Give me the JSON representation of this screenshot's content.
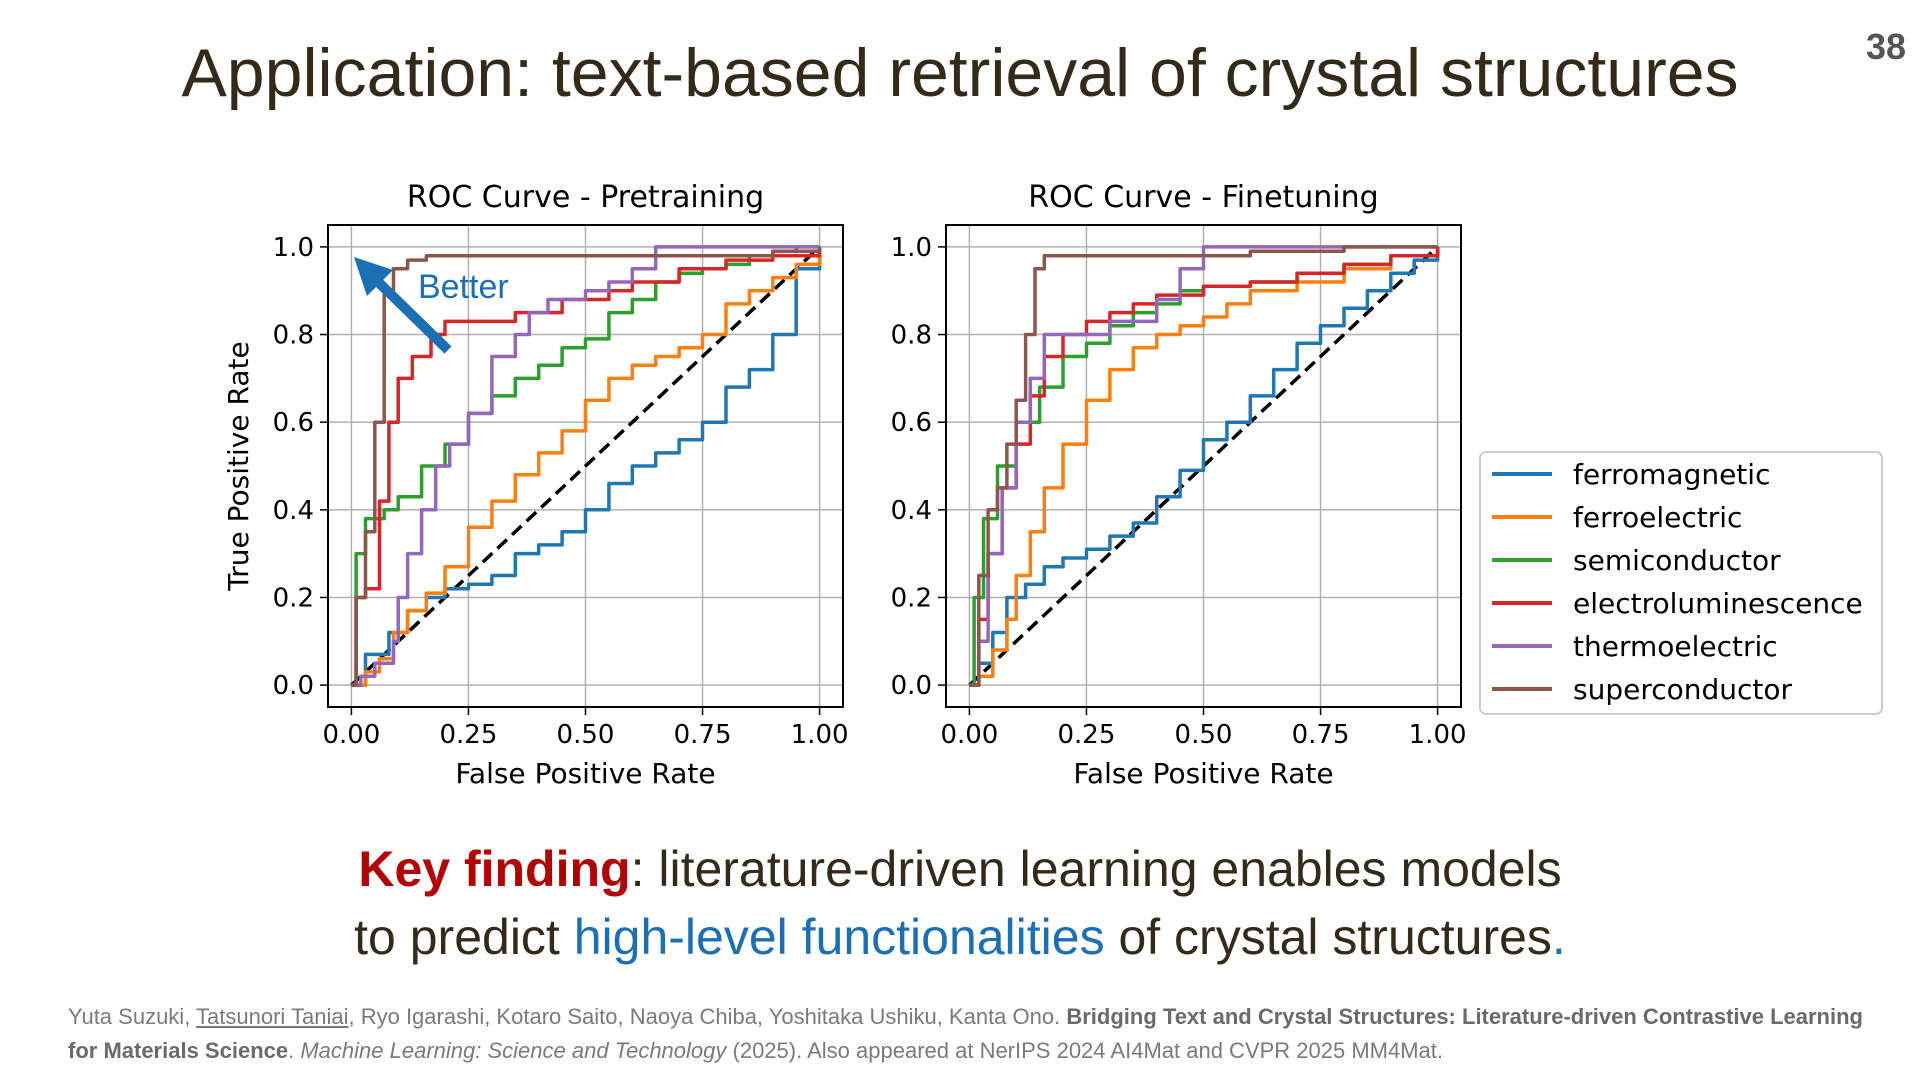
{
  "slide": {
    "title": "Application: text-based retrieval of crystal structures",
    "page_number": "38",
    "annotation": "Better",
    "finding_line1_bold": "Key finding",
    "finding_line1_rest": ": literature-driven learning enables models",
    "finding_line2_start": "to predict ",
    "finding_line2_blue": "high-level functionalities",
    "finding_line2_end": " of crystal structures",
    "finding_line2_dot": "."
  },
  "reference": {
    "author1": "Yuta Suzuki, ",
    "author2": "Tatsunori Taniai",
    "author_rest": ", Ryo Igarashi, Kotaro Saito, Naoya Chiba, Yoshitaka Ushiku, Kanta Ono. ",
    "paper_title": "Bridging Text and Crystal Structures: Literature-driven Contrastive Learning for Materials Science",
    "journal_sep": ". ",
    "journal": "Machine Learning: Science and Technology",
    "tail": " (2025). Also appeared at NerIPS 2024 AI4Mat and CVPR 2025 MM4Mat."
  },
  "colors": {
    "ferromagnetic": "#1f77b4",
    "ferroelectric": "#ff7f0e",
    "semiconductor": "#2ca02c",
    "electroluminescence": "#d62728",
    "thermoelectric": "#9467bd",
    "superconductor": "#8c564b",
    "title": "#332a19",
    "key_red": "#b30000",
    "key_blue": "#1a6fb5"
  },
  "chart_data": [
    {
      "type": "line",
      "title": "ROC Curve - Pretraining",
      "xlabel": "False Positive Rate",
      "ylabel": "True Positive Rate",
      "xlim": [
        -0.05,
        1.05
      ],
      "ylim": [
        -0.05,
        1.05
      ],
      "xticks": [
        "0.00",
        "0.25",
        "0.50",
        "0.75",
        "1.00"
      ],
      "yticks": [
        "0.0",
        "0.2",
        "0.4",
        "0.6",
        "0.8",
        "1.0"
      ],
      "grid": true,
      "diagonal": true,
      "series": [
        {
          "name": "ferromagnetic",
          "x": [
            0,
            0.03,
            0.08,
            0.12,
            0.16,
            0.2,
            0.25,
            0.3,
            0.35,
            0.4,
            0.45,
            0.5,
            0.55,
            0.6,
            0.65,
            0.7,
            0.75,
            0.8,
            0.85,
            0.9,
            0.95,
            1.0
          ],
          "y": [
            0,
            0.07,
            0.12,
            0.17,
            0.2,
            0.22,
            0.23,
            0.25,
            0.3,
            0.32,
            0.35,
            0.4,
            0.46,
            0.5,
            0.53,
            0.56,
            0.6,
            0.68,
            0.72,
            0.8,
            0.95,
            1.0
          ]
        },
        {
          "name": "ferroelectric",
          "x": [
            0,
            0.03,
            0.06,
            0.09,
            0.12,
            0.16,
            0.2,
            0.25,
            0.3,
            0.35,
            0.4,
            0.45,
            0.5,
            0.55,
            0.6,
            0.65,
            0.7,
            0.75,
            0.8,
            0.85,
            0.9,
            0.95,
            1.0
          ],
          "y": [
            0,
            0.03,
            0.06,
            0.12,
            0.17,
            0.21,
            0.27,
            0.36,
            0.42,
            0.48,
            0.53,
            0.58,
            0.65,
            0.7,
            0.73,
            0.75,
            0.77,
            0.8,
            0.87,
            0.9,
            0.93,
            0.96,
            1.0
          ]
        },
        {
          "name": "semiconductor",
          "x": [
            0,
            0.01,
            0.03,
            0.07,
            0.1,
            0.15,
            0.2,
            0.25,
            0.3,
            0.35,
            0.4,
            0.45,
            0.5,
            0.55,
            0.6,
            0.65,
            0.7,
            0.75,
            0.8,
            0.85,
            0.9,
            0.95,
            1.0
          ],
          "y": [
            0,
            0.3,
            0.38,
            0.4,
            0.43,
            0.5,
            0.55,
            0.62,
            0.66,
            0.7,
            0.73,
            0.77,
            0.79,
            0.85,
            0.88,
            0.92,
            0.94,
            0.95,
            0.96,
            0.98,
            0.99,
            1.0,
            1.0
          ]
        },
        {
          "name": "electroluminescence",
          "x": [
            0,
            0.01,
            0.03,
            0.06,
            0.08,
            0.1,
            0.13,
            0.17,
            0.2,
            0.25,
            0.3,
            0.35,
            0.4,
            0.45,
            0.5,
            0.55,
            0.6,
            0.7,
            0.8,
            0.9,
            1.0
          ],
          "y": [
            0,
            0.2,
            0.22,
            0.42,
            0.6,
            0.7,
            0.75,
            0.8,
            0.83,
            0.83,
            0.83,
            0.85,
            0.85,
            0.88,
            0.88,
            0.9,
            0.92,
            0.95,
            0.97,
            0.98,
            1.0
          ]
        },
        {
          "name": "thermoelectric",
          "x": [
            0,
            0.02,
            0.05,
            0.09,
            0.1,
            0.12,
            0.15,
            0.18,
            0.21,
            0.25,
            0.3,
            0.35,
            0.38,
            0.42,
            0.5,
            0.55,
            0.6,
            0.65,
            0.7,
            0.8,
            0.9,
            1.0
          ],
          "y": [
            0,
            0.02,
            0.05,
            0.1,
            0.2,
            0.3,
            0.4,
            0.5,
            0.55,
            0.62,
            0.75,
            0.8,
            0.85,
            0.88,
            0.9,
            0.92,
            0.95,
            1.0,
            1.0,
            1.0,
            1.0,
            1.0
          ]
        },
        {
          "name": "superconductor",
          "x": [
            0,
            0.01,
            0.03,
            0.05,
            0.07,
            0.09,
            0.12,
            0.16,
            0.2,
            0.4,
            0.6,
            0.8,
            0.9,
            1.0
          ],
          "y": [
            0,
            0.2,
            0.35,
            0.6,
            0.9,
            0.95,
            0.97,
            0.98,
            0.98,
            0.98,
            0.98,
            0.98,
            0.99,
            1.0
          ]
        }
      ]
    },
    {
      "type": "line",
      "title": "ROC Curve - Finetuning",
      "xlabel": "False Positive Rate",
      "ylabel": "",
      "xlim": [
        -0.05,
        1.05
      ],
      "ylim": [
        -0.05,
        1.05
      ],
      "xticks": [
        "0.00",
        "0.25",
        "0.50",
        "0.75",
        "1.00"
      ],
      "yticks": [
        "0.0",
        "0.2",
        "0.4",
        "0.6",
        "0.8",
        "1.0"
      ],
      "grid": true,
      "diagonal": true,
      "series": [
        {
          "name": "ferromagnetic",
          "x": [
            0,
            0.02,
            0.05,
            0.08,
            0.12,
            0.16,
            0.2,
            0.25,
            0.3,
            0.35,
            0.4,
            0.45,
            0.5,
            0.55,
            0.6,
            0.65,
            0.7,
            0.75,
            0.8,
            0.85,
            0.9,
            0.95,
            1.0
          ],
          "y": [
            0,
            0.05,
            0.12,
            0.2,
            0.23,
            0.27,
            0.29,
            0.31,
            0.34,
            0.37,
            0.43,
            0.49,
            0.56,
            0.6,
            0.66,
            0.72,
            0.78,
            0.82,
            0.86,
            0.9,
            0.94,
            0.97,
            1.0
          ]
        },
        {
          "name": "ferroelectric",
          "x": [
            0,
            0.02,
            0.05,
            0.08,
            0.1,
            0.13,
            0.16,
            0.2,
            0.25,
            0.3,
            0.35,
            0.4,
            0.45,
            0.5,
            0.55,
            0.6,
            0.7,
            0.8,
            0.9,
            1.0
          ],
          "y": [
            0,
            0.02,
            0.08,
            0.15,
            0.25,
            0.35,
            0.45,
            0.55,
            0.65,
            0.72,
            0.77,
            0.8,
            0.82,
            0.84,
            0.87,
            0.9,
            0.92,
            0.95,
            0.98,
            1.0
          ]
        },
        {
          "name": "semiconductor",
          "x": [
            0,
            0.01,
            0.03,
            0.06,
            0.1,
            0.15,
            0.2,
            0.25,
            0.3,
            0.35,
            0.4,
            0.45,
            0.5,
            0.6,
            0.7,
            0.8,
            0.9,
            1.0
          ],
          "y": [
            0,
            0.2,
            0.38,
            0.5,
            0.6,
            0.68,
            0.75,
            0.78,
            0.82,
            0.85,
            0.87,
            0.9,
            0.91,
            0.92,
            0.94,
            0.96,
            0.98,
            1.0
          ]
        },
        {
          "name": "electroluminescence",
          "x": [
            0,
            0.02,
            0.04,
            0.07,
            0.1,
            0.13,
            0.16,
            0.2,
            0.25,
            0.3,
            0.35,
            0.4,
            0.5,
            0.6,
            0.7,
            0.8,
            0.9,
            1.0
          ],
          "y": [
            0,
            0.15,
            0.3,
            0.45,
            0.55,
            0.66,
            0.75,
            0.8,
            0.83,
            0.85,
            0.87,
            0.89,
            0.91,
            0.92,
            0.94,
            0.96,
            0.98,
            1.0
          ]
        },
        {
          "name": "thermoelectric",
          "x": [
            0,
            0.02,
            0.04,
            0.07,
            0.1,
            0.13,
            0.16,
            0.2,
            0.3,
            0.4,
            0.45,
            0.5,
            0.55,
            0.7,
            0.85,
            1.0
          ],
          "y": [
            0,
            0.1,
            0.3,
            0.45,
            0.6,
            0.7,
            0.8,
            0.8,
            0.83,
            0.88,
            0.95,
            1.0,
            1.0,
            1.0,
            1.0,
            1.0
          ]
        },
        {
          "name": "superconductor",
          "x": [
            0,
            0.02,
            0.04,
            0.06,
            0.08,
            0.1,
            0.12,
            0.14,
            0.16,
            0.2,
            0.4,
            0.6,
            0.8,
            1.0
          ],
          "y": [
            0,
            0.25,
            0.4,
            0.45,
            0.55,
            0.65,
            0.8,
            0.95,
            0.98,
            0.98,
            0.98,
            0.99,
            1.0,
            1.0
          ]
        }
      ]
    }
  ]
}
